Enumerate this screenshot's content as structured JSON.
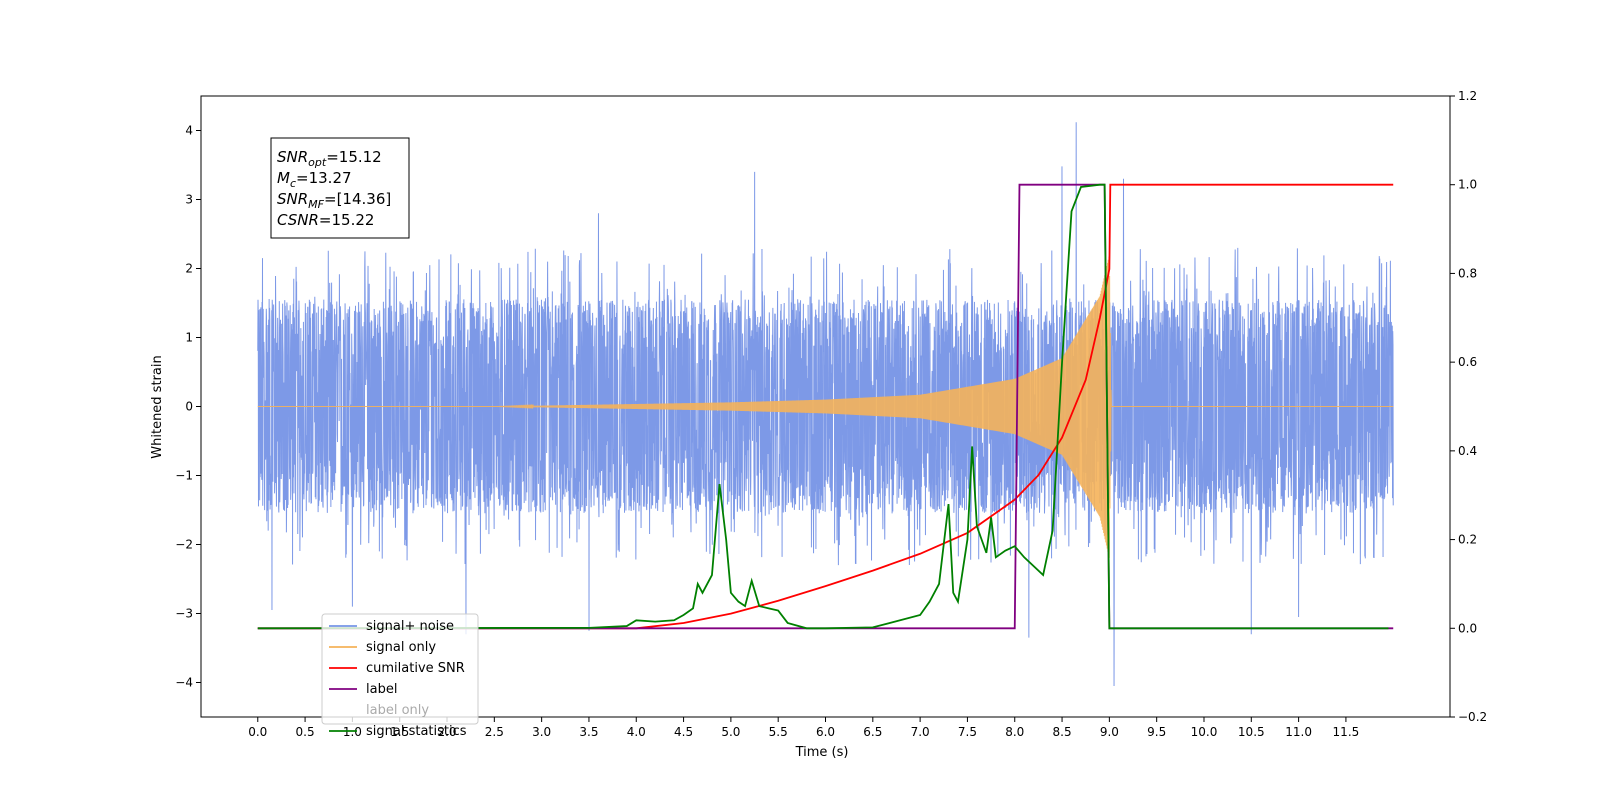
{
  "chart_data": {
    "type": "line",
    "xlabel": "Time (s)",
    "ylabel": "Whitened strain",
    "xlim": [
      -0.6,
      12.6
    ],
    "ylim": [
      -4.5,
      4.5
    ],
    "y2lim": [
      -0.2,
      1.2
    ],
    "x_ticks": [
      0.0,
      0.5,
      1.0,
      1.5,
      2.0,
      2.5,
      3.0,
      3.5,
      4.0,
      4.5,
      5.0,
      5.5,
      6.0,
      6.5,
      7.0,
      7.5,
      8.0,
      8.5,
      9.0,
      9.5,
      10.0,
      10.5,
      11.0,
      11.5
    ],
    "x_tick_labels": [
      "0.0",
      "0.5",
      "1.0",
      "1.5",
      "2.0",
      "2.5",
      "3.0",
      "3.5",
      "4.0",
      "4.5",
      "5.0",
      "5.5",
      "6.0",
      "6.5",
      "7.0",
      "7.5",
      "8.0",
      "8.5",
      "9.0",
      "9.5",
      "10.0",
      "10.5",
      "11.0",
      "11.5"
    ],
    "y_ticks": [
      -4,
      -3,
      -2,
      -1,
      0,
      1,
      2,
      3,
      4
    ],
    "y_tick_labels": [
      "−4",
      "−3",
      "−2",
      "−1",
      "0",
      "1",
      "2",
      "3",
      "4"
    ],
    "y2_ticks": [
      -0.2,
      0.0,
      0.2,
      0.4,
      0.6,
      0.8,
      1.0,
      1.2
    ],
    "y2_tick_labels": [
      "−0.2",
      "0.0",
      "0.2",
      "0.4",
      "0.6",
      "0.8",
      "1.0",
      "1.2"
    ],
    "grid": false,
    "legend_position": "bottom-left",
    "annotation": {
      "lines": [
        {
          "base": "SNR",
          "sub": "opt",
          "value": "=15.12"
        },
        {
          "base": "M",
          "sub": "c",
          "value": "=13.27"
        },
        {
          "base": "SNR",
          "sub": "MF",
          "value": "=[14.36]"
        },
        {
          "base": "CSNR",
          "sub": "",
          "value": "=15.22"
        }
      ]
    },
    "series": [
      {
        "name": "signal+ noise",
        "axis": "left",
        "color": "#7694e6",
        "kind": "noise",
        "x_range": [
          0.0,
          12.0
        ],
        "typical_range": [
          -1.5,
          1.6
        ],
        "peaks": [
          {
            "x": 8.65,
            "y": 4.12
          },
          {
            "x": 5.25,
            "y": 3.4
          },
          {
            "x": 9.15,
            "y": 3.3
          },
          {
            "x": 8.5,
            "y": 3.48
          },
          {
            "x": 3.6,
            "y": 2.8
          },
          {
            "x": 0.05,
            "y": 2.15
          },
          {
            "x": 9.05,
            "y": -4.05
          },
          {
            "x": 0.15,
            "y": -2.95
          },
          {
            "x": 2.2,
            "y": -3.3
          },
          {
            "x": 8.15,
            "y": -3.35
          },
          {
            "x": 3.5,
            "y": -3.25
          },
          {
            "x": 10.5,
            "y": -3.3
          },
          {
            "x": 11.0,
            "y": -3.05
          },
          {
            "x": 1.0,
            "y": -2.9
          }
        ]
      },
      {
        "name": "signal only",
        "axis": "left",
        "color": "#f5b25a",
        "kind": "chirp",
        "amplitude_at": [
          [
            2.5,
            0.0
          ],
          [
            5.0,
            0.06
          ],
          [
            6.0,
            0.1
          ],
          [
            7.0,
            0.17
          ],
          [
            8.0,
            0.4
          ],
          [
            8.5,
            0.7
          ],
          [
            8.9,
            1.6
          ],
          [
            9.0,
            2.2
          ],
          [
            9.02,
            0.0
          ],
          [
            12.0,
            0.0
          ]
        ]
      },
      {
        "name": "cumilative SNR",
        "axis": "right",
        "color": "#ff0000",
        "x": [
          0.0,
          4.0,
          4.5,
          5.0,
          5.5,
          6.0,
          6.5,
          7.0,
          7.5,
          8.0,
          8.25,
          8.5,
          8.75,
          8.9,
          9.0,
          9.01,
          12.0
        ],
        "y": [
          0.0,
          0.0,
          0.012,
          0.033,
          0.062,
          0.095,
          0.13,
          0.168,
          0.215,
          0.29,
          0.345,
          0.43,
          0.56,
          0.7,
          0.81,
          1.0,
          1.0
        ]
      },
      {
        "name": "label",
        "axis": "right",
        "color": "#800080",
        "x": [
          0.0,
          8.0,
          8.05,
          8.95,
          9.0,
          12.0
        ],
        "y": [
          0.0,
          0.0,
          1.0,
          1.0,
          0.0,
          0.0
        ]
      },
      {
        "name": "label only",
        "axis": "none",
        "color": "#cccccc"
      },
      {
        "name": "signal statistics",
        "axis": "right",
        "color": "#008000",
        "x": [
          0.0,
          3.5,
          3.9,
          4.0,
          4.2,
          4.4,
          4.5,
          4.6,
          4.65,
          4.7,
          4.8,
          4.88,
          4.95,
          5.0,
          5.08,
          5.15,
          5.22,
          5.3,
          5.4,
          5.5,
          5.6,
          5.8,
          6.0,
          6.5,
          7.0,
          7.1,
          7.2,
          7.3,
          7.35,
          7.4,
          7.5,
          7.55,
          7.6,
          7.7,
          7.75,
          7.8,
          7.9,
          8.0,
          8.1,
          8.3,
          8.4,
          8.5,
          8.6,
          8.7,
          8.9,
          8.95,
          9.0,
          9.05,
          11.95
        ],
        "y": [
          0.0,
          0.001,
          0.005,
          0.018,
          0.015,
          0.018,
          0.03,
          0.045,
          0.1,
          0.08,
          0.12,
          0.325,
          0.2,
          0.08,
          0.06,
          0.05,
          0.107,
          0.05,
          0.045,
          0.04,
          0.012,
          0.0,
          0.0,
          0.002,
          0.03,
          0.06,
          0.1,
          0.28,
          0.08,
          0.06,
          0.2,
          0.41,
          0.23,
          0.17,
          0.25,
          0.16,
          0.175,
          0.185,
          0.16,
          0.12,
          0.22,
          0.6,
          0.94,
          0.995,
          1.0,
          1.0,
          0.0,
          0.0,
          0.0
        ]
      }
    ]
  }
}
